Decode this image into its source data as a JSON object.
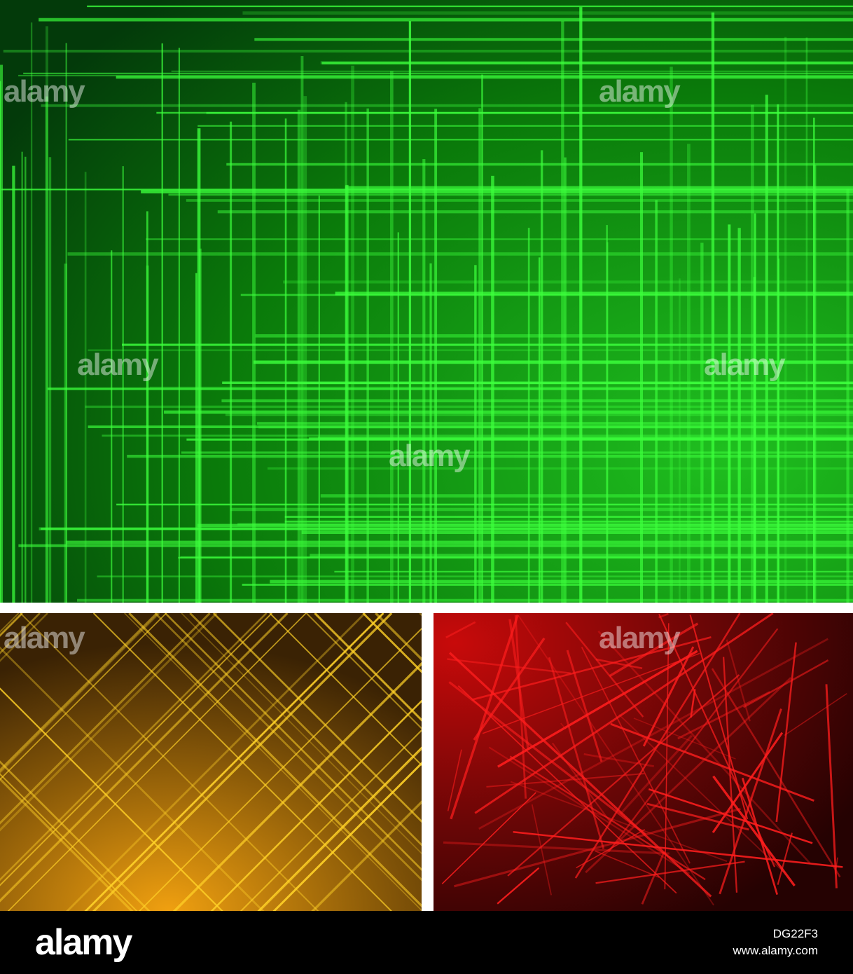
{
  "watermark": "alamy",
  "footer": {
    "logo": "alamy",
    "image_id": "DG22F3",
    "url": "www.alamy.com"
  }
}
